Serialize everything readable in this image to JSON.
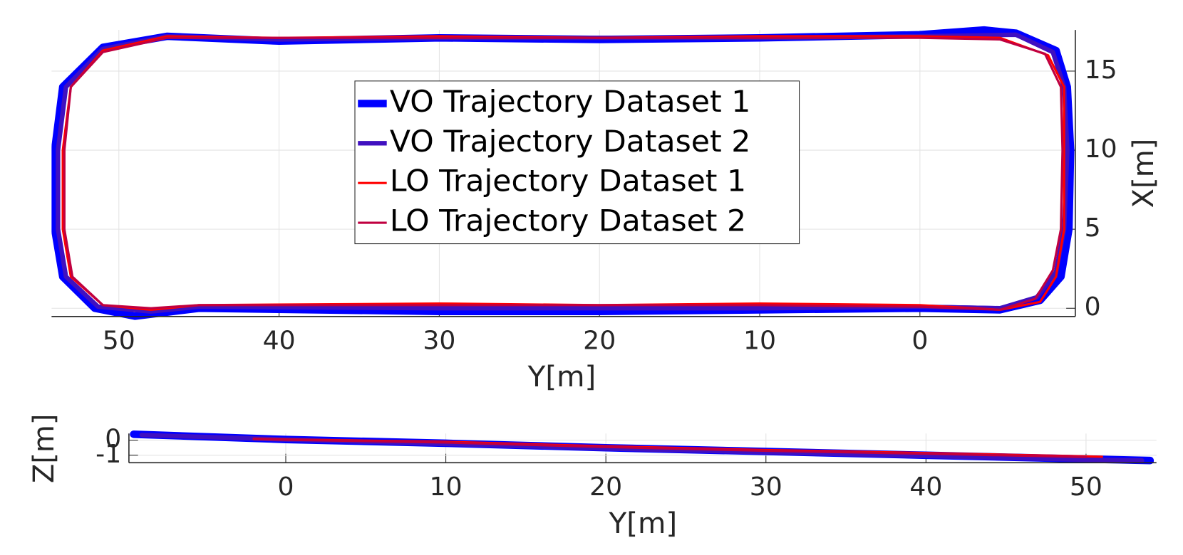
{
  "chart_data": [
    {
      "type": "line",
      "xlabel": "Y[m]",
      "ylabel": "X[m]",
      "yaxis_side": "right",
      "xlim": [
        54.2,
        -9.7
      ],
      "ylim": [
        -0.52,
        17.6
      ],
      "xticks": [
        50,
        40,
        30,
        20,
        10,
        0
      ],
      "yticks": [
        0,
        5,
        10,
        15
      ],
      "grid": true,
      "legend": "upper center",
      "series": [
        {
          "name": "VO Trajectory Dataset 1",
          "color": "#0000ff",
          "linewidth": 10,
          "x": [
            0,
            -5,
            -7.5,
            -8.8,
            -9.3,
            -9.4,
            -9.2,
            -8.5,
            -6,
            -4,
            0,
            10,
            20,
            30,
            40,
            47,
            51,
            53.5,
            54,
            54,
            53.5,
            51.5,
            49,
            45,
            30,
            20,
            10,
            0
          ],
          "values": [
            0,
            -0.1,
            0.5,
            2,
            5,
            10,
            14,
            16.3,
            17.4,
            17.6,
            17.3,
            17.1,
            17,
            17.1,
            16.9,
            17.2,
            16.5,
            14,
            10,
            5,
            2,
            0,
            -0.5,
            0,
            -0.2,
            -0.2,
            -0.1,
            0
          ]
        },
        {
          "name": "VO Trajectory Dataset 2",
          "color": "#4010c0",
          "linewidth": 6,
          "x": [
            0,
            -5,
            -7.3,
            -8.5,
            -9,
            -9.2,
            -9,
            -8.3,
            -6,
            0,
            10,
            20,
            30,
            40,
            47,
            51,
            53.3,
            53.8,
            53.8,
            53.3,
            51.3,
            48,
            45,
            30,
            20,
            10,
            0
          ],
          "values": [
            0.1,
            0,
            0.7,
            2.3,
            5,
            10,
            14,
            16.2,
            17.3,
            17.2,
            17.1,
            17.1,
            17.1,
            17,
            17.2,
            16.4,
            14,
            10,
            5,
            2,
            0.1,
            -0.2,
            0.1,
            0,
            0,
            0,
            0.1
          ]
        },
        {
          "name": "LO Trajectory Dataset 1",
          "color": "#ff0000",
          "linewidth": 3,
          "x": [
            0,
            -5,
            -7.5,
            -8.5,
            -9,
            -9,
            -9,
            -8,
            -5,
            0,
            10,
            20,
            30,
            40,
            47,
            51,
            53,
            53.5,
            53.5,
            53,
            51,
            48,
            45,
            30,
            20,
            10,
            0
          ],
          "values": [
            0.2,
            -0.1,
            0.4,
            2,
            5,
            10,
            14,
            16,
            17.1,
            17.2,
            17.2,
            17.1,
            17.2,
            17.1,
            17.2,
            16.3,
            14,
            10,
            5,
            2,
            0.2,
            -0.1,
            0.2,
            0.3,
            0.2,
            0.3,
            0.2
          ]
        },
        {
          "name": "LO Trajectory Dataset 2",
          "color": "#c00040",
          "linewidth": 3,
          "x": [
            0,
            -5,
            -7.2,
            -8.3,
            -8.8,
            -8.9,
            -8.8,
            -7.8,
            -5,
            0,
            10,
            20,
            30,
            40,
            47,
            51,
            53,
            53.4,
            53.4,
            52.9,
            51,
            48,
            45,
            30,
            20,
            10,
            0
          ],
          "values": [
            0.1,
            -0.1,
            0.6,
            2.4,
            5,
            10,
            14,
            16.1,
            17,
            17.1,
            17.1,
            17.1,
            17.1,
            17.1,
            17.1,
            16.2,
            14,
            10,
            5,
            2,
            0.2,
            0,
            0.2,
            0.2,
            0.2,
            0.2,
            0.1
          ]
        }
      ]
    },
    {
      "type": "line",
      "xlabel": "Y[m]",
      "ylabel": "Z[m]",
      "yaxis_side": "left",
      "xlim": [
        -9.8,
        54.4
      ],
      "ylim": [
        -1.5,
        0.45
      ],
      "xticks": [
        0,
        10,
        20,
        30,
        40,
        50
      ],
      "yticks": [
        -1,
        0
      ],
      "grid": true,
      "series": [
        {
          "color": "#0000ff",
          "linewidth": 10,
          "x": [
            -9.5,
            0,
            10,
            20,
            30,
            40,
            50,
            54
          ],
          "values": [
            0.4,
            0.05,
            -0.2,
            -0.5,
            -0.75,
            -1.0,
            -1.25,
            -1.35
          ]
        },
        {
          "color": "#4010c0",
          "linewidth": 6,
          "x": [
            -9,
            0,
            10,
            20,
            30,
            40,
            50,
            53.5
          ],
          "values": [
            0.35,
            0.05,
            -0.25,
            -0.55,
            -0.8,
            -1.05,
            -1.3,
            -1.35
          ]
        },
        {
          "color": "#ff0000",
          "linewidth": 3,
          "x": [
            -2,
            0,
            10,
            20,
            30,
            40,
            51
          ],
          "values": [
            0.1,
            0.05,
            -0.1,
            -0.4,
            -0.65,
            -0.85,
            -1.1
          ]
        },
        {
          "color": "#c00040",
          "linewidth": 3,
          "x": [
            -2,
            0,
            10,
            20,
            30,
            40,
            50
          ],
          "values": [
            0.08,
            0.03,
            -0.15,
            -0.45,
            -0.7,
            -0.9,
            -1.12
          ]
        }
      ]
    }
  ]
}
